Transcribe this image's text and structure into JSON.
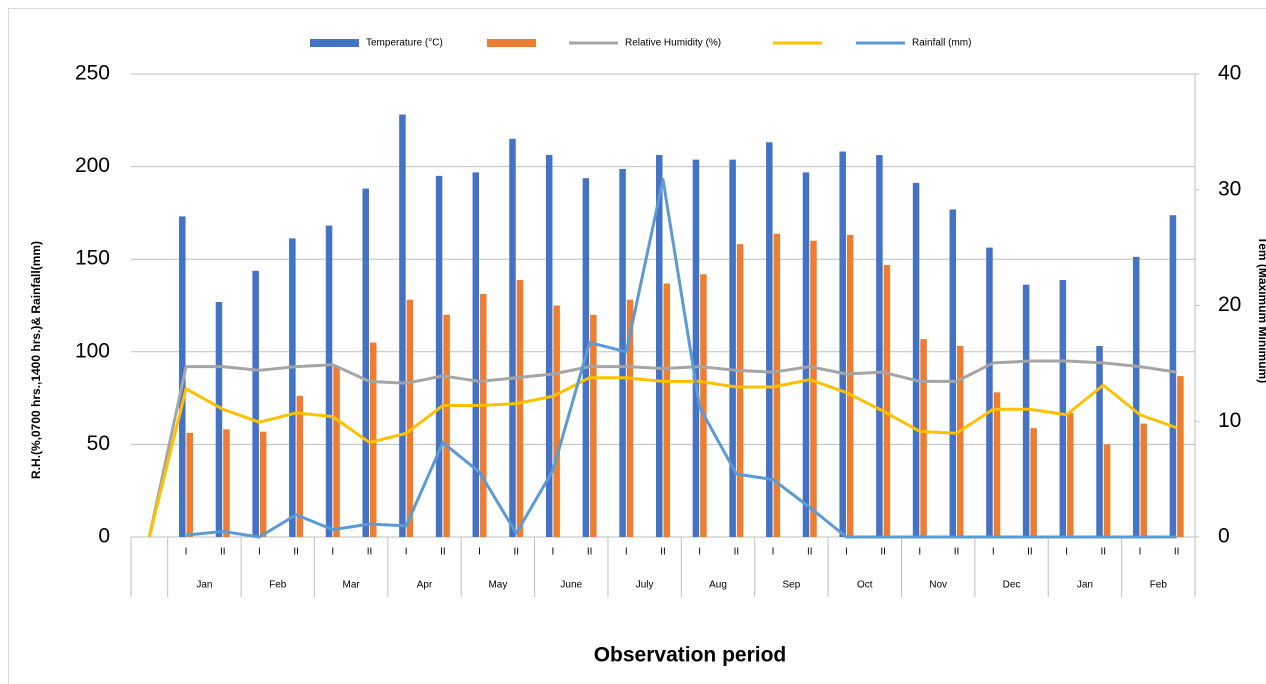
{
  "chart_data": {
    "type": "combo",
    "x_title": "Observation period",
    "y_title": "R.H.(%,0700 hrs.,1400 hrs.)& Rainfall(mm)",
    "y2_title": "Tem (Maximum Minimum)",
    "categories": [
      null,
      "I",
      "II",
      "I",
      "II",
      "I",
      "II",
      "I",
      "II",
      "I",
      "II",
      "I",
      "II",
      "I",
      "II",
      "I",
      "II",
      "I",
      "II",
      "I",
      "II",
      "I",
      "II",
      "I",
      "II",
      "I",
      "II",
      "I",
      "II"
    ],
    "month_groups": [
      "Jan",
      "Feb",
      "Mar",
      "Apr",
      "May",
      "June",
      "July",
      "Aug",
      "Sep",
      "Oct",
      "Nov",
      "Dec",
      "Jan",
      "Feb"
    ],
    "ylim": [
      0,
      250
    ],
    "yticks": [
      0,
      50,
      100,
      150,
      200,
      250
    ],
    "y2lim": [
      0,
      40
    ],
    "y2ticks": [
      0,
      10,
      20,
      30,
      40
    ],
    "grid": true,
    "legend": "top",
    "series": [
      {
        "name": "Temperature (°C)",
        "type": "bar",
        "axis": "y2",
        "color": "#4472c4",
        "values": [
          null,
          27.7,
          20.3,
          23.0,
          25.8,
          26.9,
          30.1,
          36.5,
          31.2,
          31.5,
          34.4,
          33.0,
          31.0,
          31.8,
          33.0,
          32.6,
          32.6,
          34.1,
          31.5,
          33.3,
          33.0,
          30.6,
          28.3,
          25.0,
          21.8,
          22.2,
          16.5,
          24.2,
          27.8
        ]
      },
      {
        "type": "bar",
        "axis": "y2",
        "color": "#ed7d31",
        "values": [
          null,
          9.0,
          9.3,
          9.1,
          12.2,
          14.7,
          16.8,
          20.5,
          19.2,
          21.0,
          22.2,
          20.0,
          19.2,
          20.5,
          21.9,
          22.7,
          25.3,
          26.2,
          25.6,
          26.1,
          23.5,
          17.1,
          16.5,
          12.5,
          9.4,
          10.7,
          8.0,
          9.8,
          13.9
        ]
      },
      {
        "name": "Relative Humidity (%)",
        "type": "line",
        "color": "#a5a5a5",
        "values": [
          0,
          92,
          92,
          90,
          92,
          93,
          84,
          83,
          87,
          84,
          86,
          88,
          92,
          92,
          91,
          92,
          90,
          89,
          92,
          88,
          89,
          84,
          84,
          94,
          95,
          95,
          94,
          92,
          89
        ]
      },
      {
        "type": "line",
        "color": "#ffc000",
        "values": [
          0,
          80,
          69,
          62,
          67,
          65,
          51,
          56,
          71,
          71,
          72,
          76,
          86,
          86,
          84,
          84,
          81,
          81,
          85,
          78,
          68,
          57,
          56,
          69,
          69,
          66,
          82,
          66,
          59
        ]
      },
      {
        "name": "Rainfall (mm)",
        "type": "line",
        "color": "#5b9bd5",
        "values": [
          null,
          1,
          3,
          0,
          12,
          4,
          7,
          6,
          51,
          35,
          2,
          36,
          105,
          100,
          193,
          70,
          34,
          31,
          16,
          0,
          0,
          0,
          0,
          0,
          0,
          0,
          0,
          0,
          0
        ]
      }
    ]
  }
}
